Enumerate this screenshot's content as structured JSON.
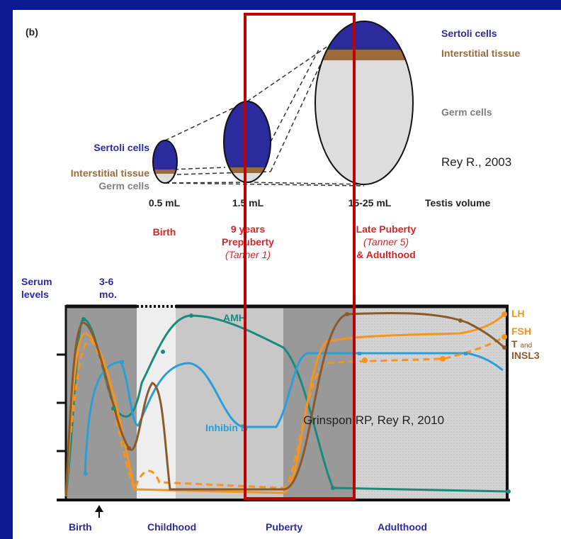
{
  "figure_label": "(b)",
  "testis": {
    "sertoli_right": "Sertoli cells",
    "interstitial_right": "Interstitial tissue",
    "germ_right": "Germ cells",
    "sertoli_left": "Sertoli cells",
    "interstitial_left": "Interstitial tissue",
    "germ_left": "Germ cells",
    "citation": "Rey R., 2003",
    "volumes": [
      "0.5 mL",
      "1.5 mL",
      "15-25 mL"
    ],
    "volume_label": "Testis volume",
    "stages": [
      {
        "lines": [
          "Birth"
        ]
      },
      {
        "lines": [
          "9 years",
          "Prepuberty",
          "(Tanner 1)"
        ]
      },
      {
        "lines": [
          "Late Puberty",
          "(Tanner 5)",
          "& Adulthood"
        ]
      }
    ]
  },
  "serum": {
    "axis_label_1": "Serum",
    "axis_label_2": "levels",
    "age_1": "3-6",
    "age_2": "mo.",
    "curves": {
      "amh": "AMH",
      "inhibin": "Inhibin B",
      "lh": "LH",
      "fsh": "FSH",
      "t": "T",
      "t_and": "and",
      "insl3": "INSL3"
    },
    "citation": "Grinspon RP, Rey R, 2010",
    "phases": [
      "Birth",
      "Childhood",
      "Puberty",
      "Adulthood"
    ]
  }
}
